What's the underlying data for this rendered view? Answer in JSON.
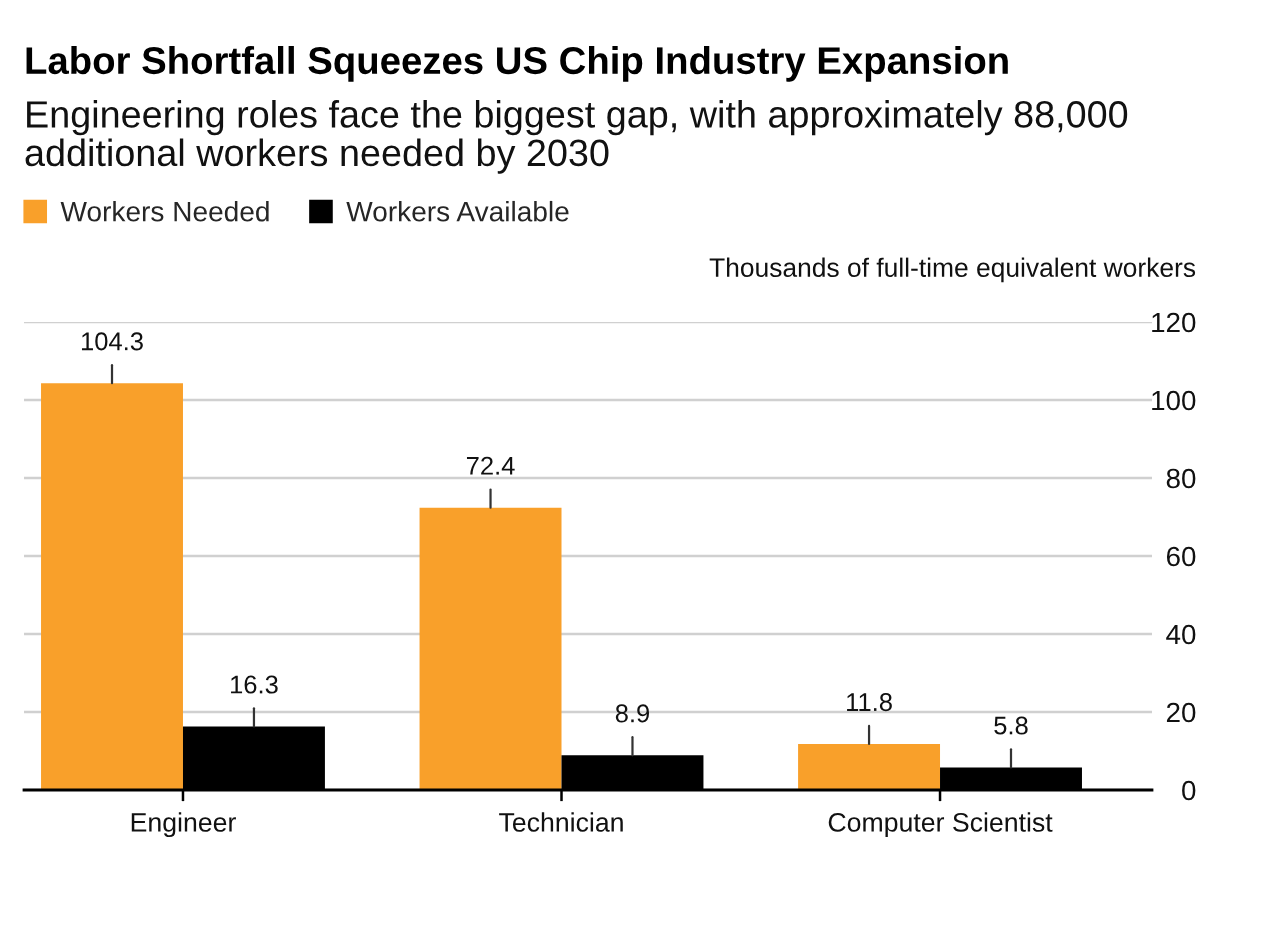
{
  "chart_data": {
    "type": "bar",
    "title": "Labor Shortfall Squeezes US Chip Industry Expansion",
    "subtitle": "Engineering roles face the biggest gap, with approximately 88,000 additional workers needed by 2030",
    "ylabel": "Thousands of full-time equivalent workers",
    "categories": [
      "Engineer",
      "Technician",
      "Computer Scientist"
    ],
    "series": [
      {
        "name": "Workers Needed",
        "color": "#f9a02a",
        "values": [
          104.3,
          72.4,
          11.8
        ]
      },
      {
        "name": "Workers Available",
        "color": "#000000",
        "values": [
          16.3,
          8.9,
          5.8
        ]
      }
    ],
    "ylim": [
      0,
      120
    ],
    "yticks": [
      0,
      20,
      40,
      60,
      80,
      100,
      120
    ],
    "grid": "y",
    "legend": "top left",
    "data_labels": true
  }
}
